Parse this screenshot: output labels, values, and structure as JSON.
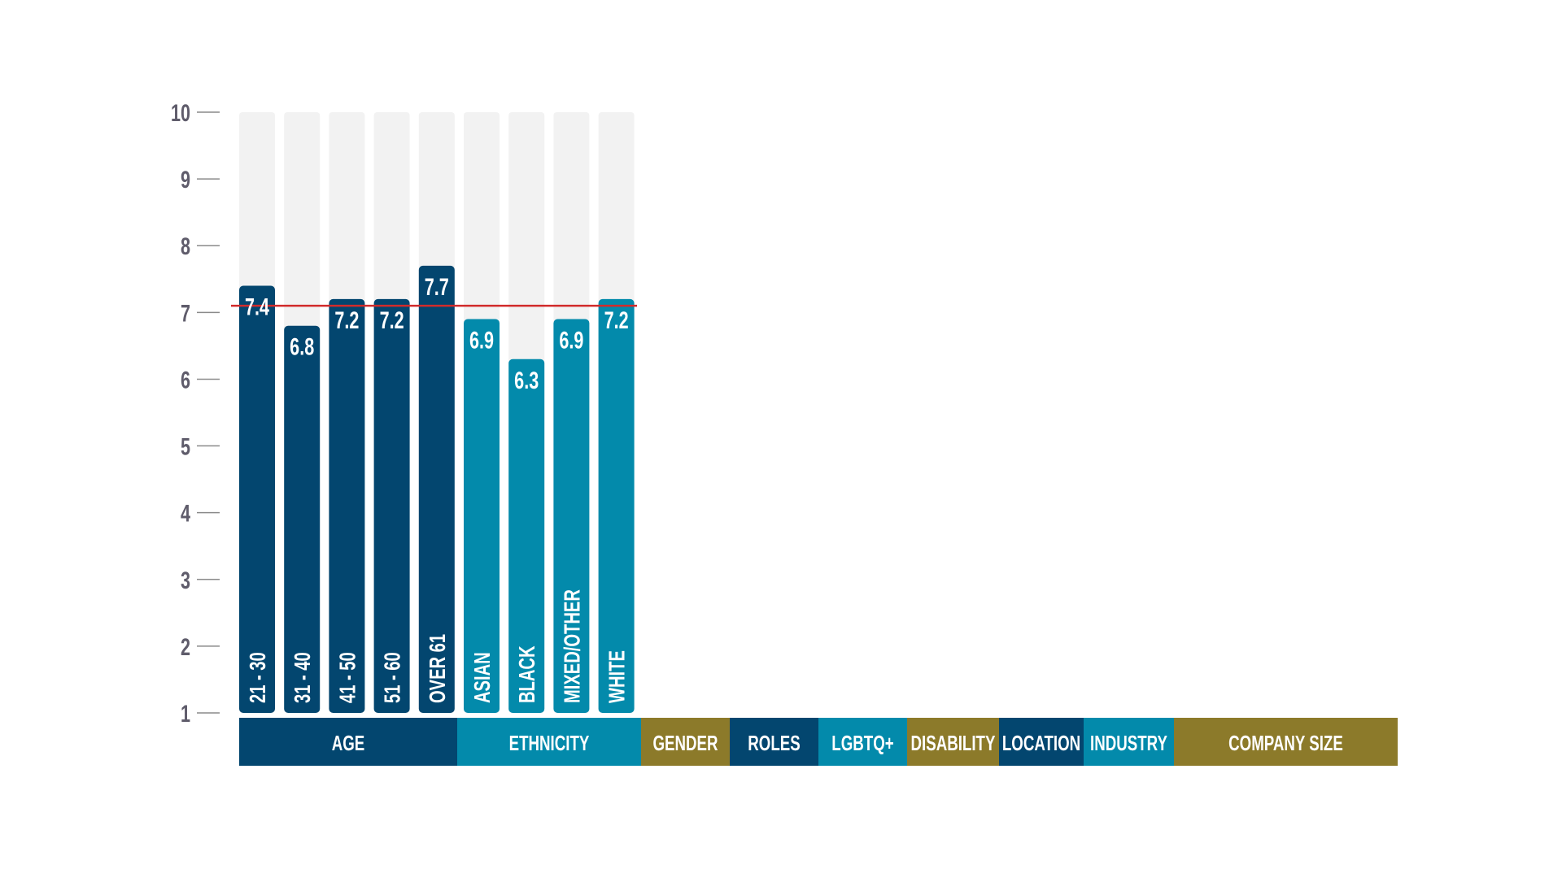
{
  "chart_data": {
    "type": "bar",
    "ylim": [
      1,
      10
    ],
    "y_ticks": [
      "1",
      "2",
      "3",
      "4",
      "5",
      "6",
      "7",
      "8",
      "9",
      "10"
    ],
    "reference_line": 7.1,
    "grid": false,
    "bars": [
      {
        "label": "21 - 30",
        "value": 7.4,
        "value_label": "7.4",
        "group": "AGE"
      },
      {
        "label": "31 - 40",
        "value": 6.8,
        "value_label": "6.8",
        "group": "AGE"
      },
      {
        "label": "41 - 50",
        "value": 7.2,
        "value_label": "7.2",
        "group": "AGE"
      },
      {
        "label": "51 - 60",
        "value": 7.2,
        "value_label": "7.2",
        "group": "AGE"
      },
      {
        "label": "OVER 61",
        "value": 7.7,
        "value_label": "7.7",
        "group": "AGE"
      },
      {
        "label": "ASIAN",
        "value": 6.9,
        "value_label": "6.9",
        "group": "ETHNICITY"
      },
      {
        "label": "BLACK",
        "value": 6.3,
        "value_label": "6.3",
        "group": "ETHNICITY"
      },
      {
        "label": "MIXED/OTHER",
        "value": 6.9,
        "value_label": "6.9",
        "group": "ETHNICITY"
      },
      {
        "label": "WHITE",
        "value": 7.2,
        "value_label": "7.2",
        "group": "ETHNICITY"
      }
    ],
    "categories": [
      {
        "label": "AGE",
        "color": "#03466f"
      },
      {
        "label": "ETHNICITY",
        "color": "#038aab"
      },
      {
        "label": "GENDER",
        "color": "#8c7a2a"
      },
      {
        "label": "ROLES",
        "color": "#03466f"
      },
      {
        "label": "LGBTQ+",
        "color": "#038aab"
      },
      {
        "label": "DISABILITY",
        "color": "#8c7a2a"
      },
      {
        "label": "LOCATION",
        "color": "#03466f"
      },
      {
        "label": "INDUSTRY",
        "color": "#038aab"
      },
      {
        "label": "COMPANY SIZE",
        "color": "#8c7a2a"
      }
    ],
    "colors": {
      "age": "#03466f",
      "ethnicity": "#038aab",
      "gold": "#8c7a2a",
      "bar_background": "#f2f2f2",
      "reference_line": "#d12b2b",
      "axis_text": "#5f5c6b",
      "tick_line": "#8a8a8a"
    }
  }
}
